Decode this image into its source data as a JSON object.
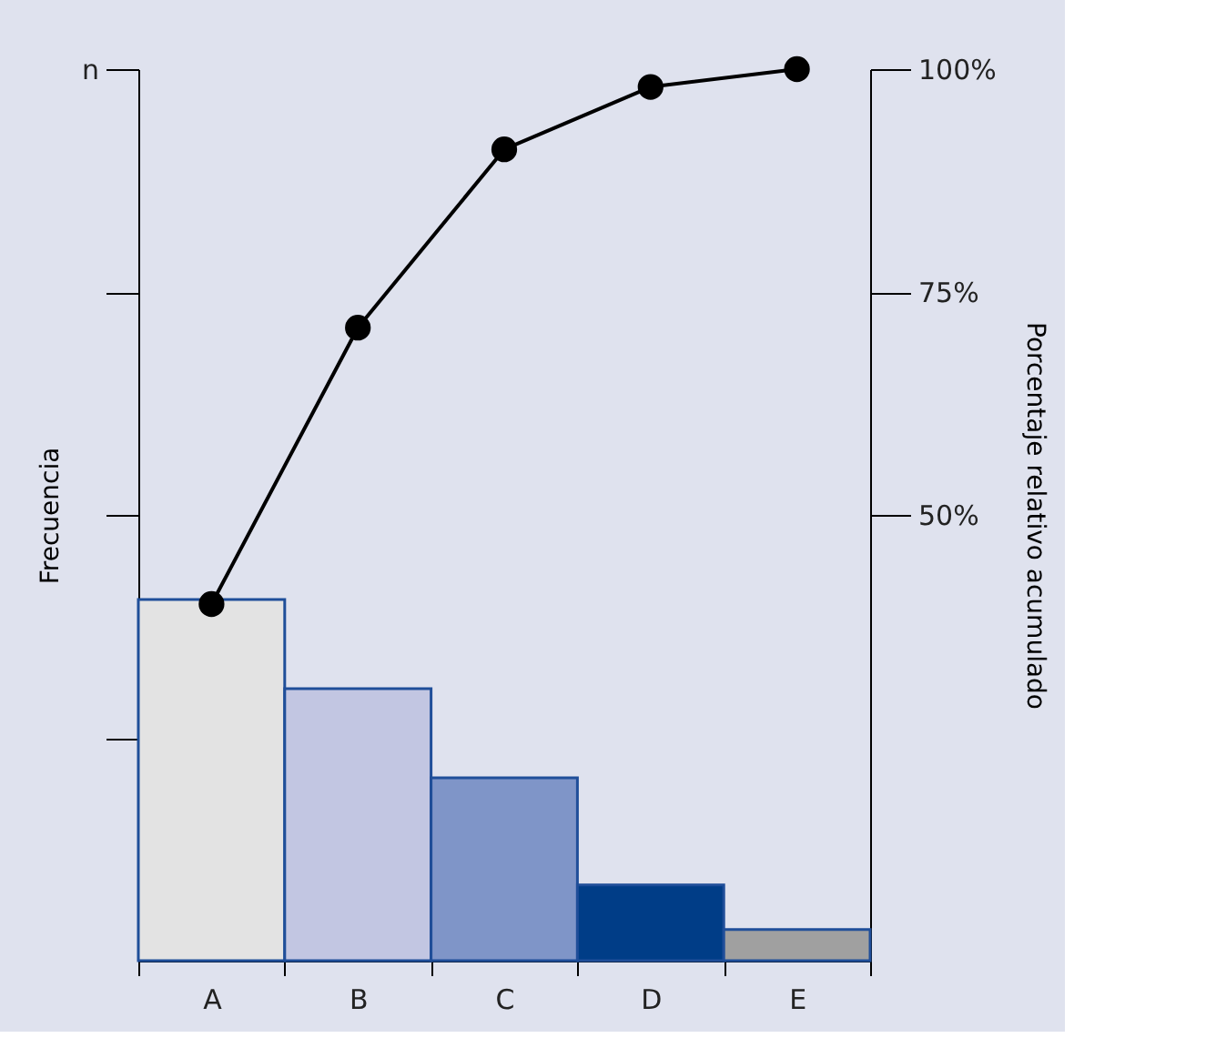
{
  "chart_data": {
    "type": "bar",
    "categories": [
      "A",
      "B",
      "C",
      "D",
      "E"
    ],
    "ylabel": "Frecuencia",
    "y2label": "Porcentaje relativo acumulado",
    "annotations": [
      "n"
    ],
    "series": [
      {
        "axis": "y2",
        "values": [
          40.5,
          30.5,
          20.5,
          8.5,
          3.5
        ],
        "colors": [
          "#e3e3e3",
          "#c2c6e2",
          "#7f95c8",
          "#003d87",
          "#a0a0a0"
        ]
      },
      {
        "type": "line",
        "axis": "y2",
        "color": "#000000",
        "values": [
          40,
          71,
          91,
          98,
          100
        ]
      }
    ],
    "y2lim": [
      0,
      100
    ],
    "y2ticks": [
      {
        "value": 50,
        "label": "50%"
      },
      {
        "value": 75,
        "label": "75%"
      },
      {
        "value": 100,
        "label": "100%"
      }
    ],
    "marker": "circle",
    "grid": false
  }
}
